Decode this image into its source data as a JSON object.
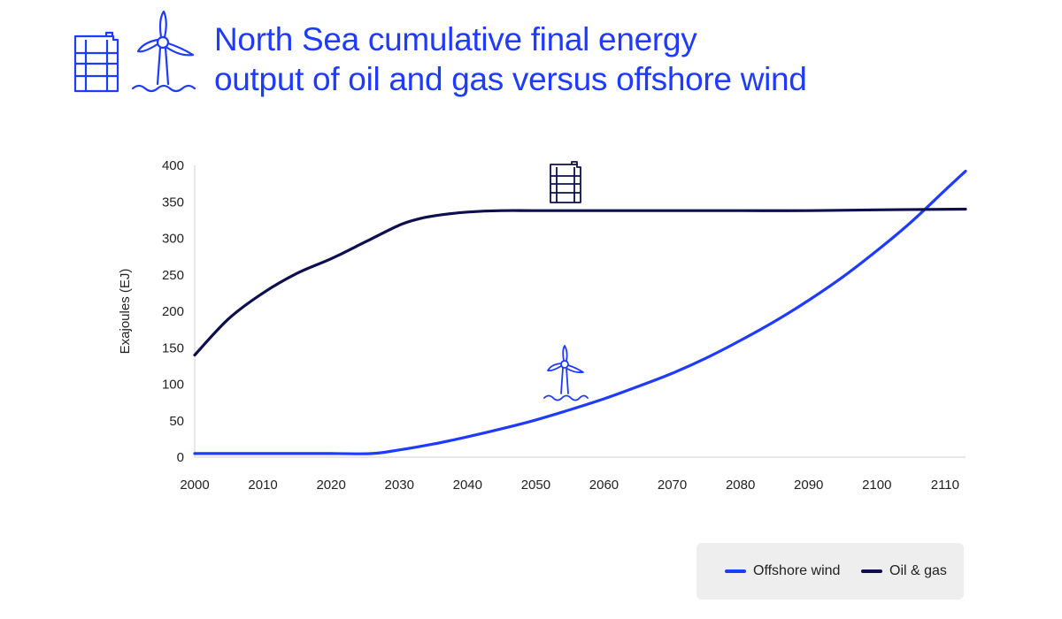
{
  "colors": {
    "accent": "#1f3bff",
    "dark": "#0d0f4f",
    "legend_bg": "#eeeeee",
    "text": "#222222"
  },
  "title": {
    "line1": "North Sea cumulative final energy",
    "line2": "output of oil and gas versus offshore wind"
  },
  "icons": [
    "oil-barrel-icon",
    "wind-turbine-icon"
  ],
  "chart_data": {
    "type": "line",
    "title": "North Sea cumulative final energy output of oil and gas versus offshore wind",
    "xlabel": "",
    "ylabel": "Exajoules (EJ)",
    "xlim": [
      2000,
      2113
    ],
    "ylim": [
      0,
      400
    ],
    "xticks": [
      2000,
      2010,
      2020,
      2030,
      2040,
      2050,
      2060,
      2070,
      2080,
      2090,
      2100,
      2110
    ],
    "yticks": [
      0,
      50,
      100,
      150,
      200,
      250,
      300,
      350,
      400
    ],
    "grid": false,
    "legend_position": "bottom-right",
    "series": [
      {
        "name": "Offshore wind",
        "color": "#1f3bff",
        "x": [
          2000,
          2010,
          2020,
          2026,
          2030,
          2035,
          2040,
          2045,
          2050,
          2055,
          2060,
          2065,
          2070,
          2075,
          2080,
          2085,
          2090,
          2095,
          2100,
          2105,
          2110,
          2113
        ],
        "y": [
          5,
          5,
          5,
          5,
          10,
          18,
          28,
          39,
          51,
          65,
          80,
          97,
          115,
          136,
          160,
          186,
          215,
          247,
          283,
          322,
          366,
          392
        ]
      },
      {
        "name": "Oil & gas",
        "color": "#0d0f4f",
        "x": [
          2000,
          2005,
          2010,
          2015,
          2020,
          2025,
          2030,
          2033,
          2036,
          2040,
          2045,
          2050,
          2060,
          2070,
          2080,
          2090,
          2100,
          2113
        ],
        "y": [
          140,
          190,
          225,
          252,
          272,
          295,
          318,
          327,
          332,
          336,
          338,
          338,
          338,
          338,
          338,
          338,
          339,
          340
        ]
      }
    ],
    "annotations": [
      {
        "icon": "oil-barrel-icon",
        "near_series": "Oil & gas"
      },
      {
        "icon": "wind-turbine-icon",
        "near_series": "Offshore wind"
      }
    ]
  },
  "legend": {
    "items": [
      {
        "label": "Offshore wind",
        "color": "#1f3bff"
      },
      {
        "label": "Oil & gas",
        "color": "#0d0f4f"
      }
    ]
  }
}
